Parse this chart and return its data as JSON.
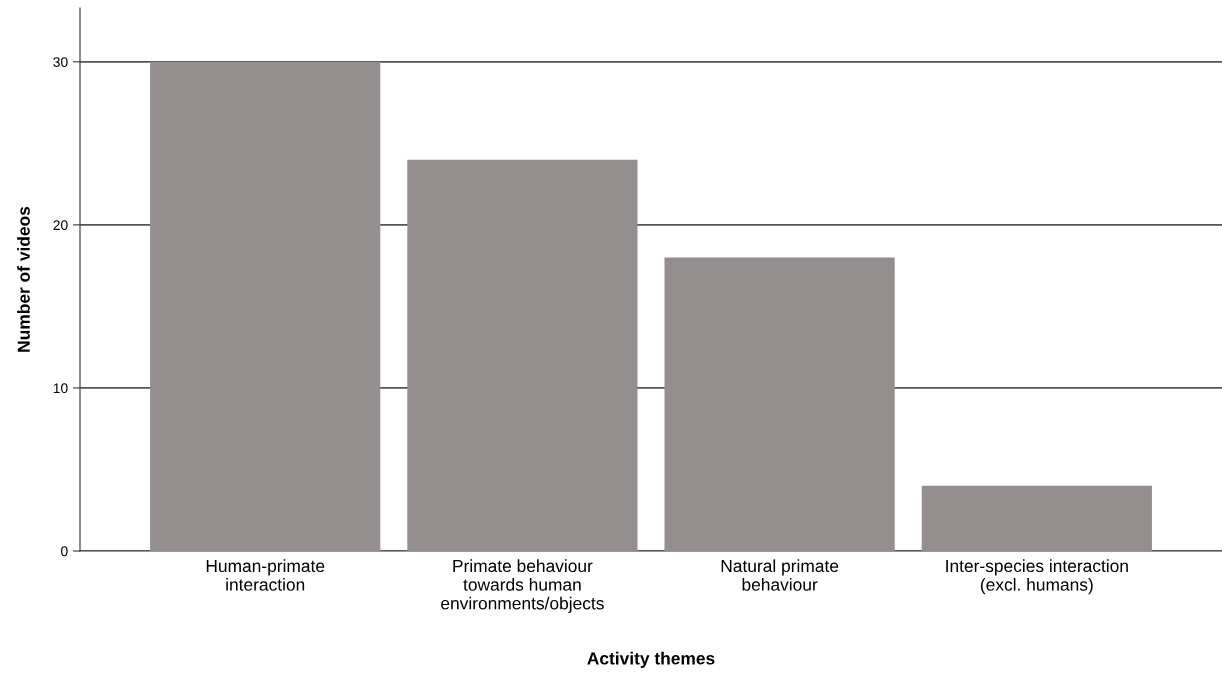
{
  "chart_data": {
    "type": "bar",
    "xlabel": "Activity themes",
    "ylabel": "Number of videos",
    "categories": [
      "Human-primate\ninteraction",
      "Primate behaviour\ntowards human\nenvironments/objects",
      "Natural primate\nbehaviour",
      "Inter-species interaction\n(excl. humans)"
    ],
    "values": [
      30,
      24,
      18,
      4
    ],
    "color": "#948f8e",
    "ylim": [
      0,
      33.3
    ],
    "yticks": [
      0,
      10,
      20,
      30
    ],
    "grid": "y"
  }
}
